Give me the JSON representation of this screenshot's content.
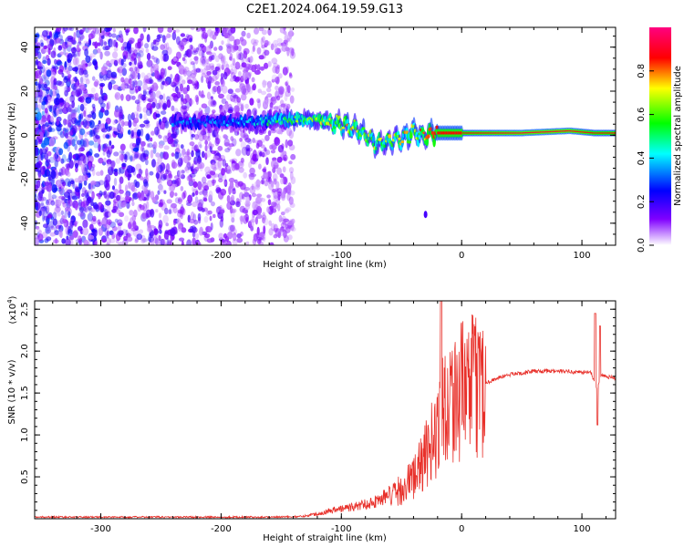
{
  "title": "C2E1.2024.064.19.59.G13",
  "chart_data": [
    {
      "type": "heatmap",
      "xlabel": "Height of straight line (km)",
      "ylabel": "Frequency (Hz)",
      "xlim": [
        -355,
        128
      ],
      "ylim": [
        -50,
        49
      ],
      "xticks": [
        -300,
        -200,
        -100,
        0,
        100
      ],
      "yticks": [
        -40,
        -20,
        0,
        20,
        40
      ],
      "colorbar": {
        "label": "Normalized spectral amplitude",
        "range": [
          0,
          1
        ],
        "ticks": [
          "0.0",
          "0.2",
          "0.4",
          "0.6",
          "0.8"
        ],
        "colormap": [
          "#ffffff",
          "#8000ff",
          "#0000ff",
          "#00ffff",
          "#00ff00",
          "#ffff00",
          "#ff0000",
          "#ff0080"
        ],
        "placement": "right"
      },
      "ridge": {
        "description_points_x": [
          -225,
          -180,
          -140,
          -120,
          -100,
          -85,
          -70,
          -55,
          -40,
          -30,
          -20,
          0,
          50,
          90,
          110,
          128
        ],
        "frequency_y": [
          6,
          6,
          7,
          7,
          5,
          2,
          -4,
          -2,
          1,
          0,
          1,
          1,
          1,
          2,
          1,
          1
        ],
        "peak_amplitude": [
          0.35,
          0.4,
          0.6,
          0.7,
          0.75,
          0.7,
          0.7,
          0.7,
          0.8,
          0.8,
          0.85,
          0.85,
          0.9,
          0.9,
          0.85,
          0.85
        ]
      }
    },
    {
      "type": "line",
      "xlabel": "Height of straight line (km)",
      "ylabel": "SNR (10 * v/v)",
      "y_multiplier": "(x10",
      "y_exponent": "4",
      "xlim": [
        -355,
        128
      ],
      "ylim": [
        0,
        2.6
      ],
      "xticks": [
        -300,
        -200,
        -100,
        0,
        100
      ],
      "yticks": [
        "0.5",
        "1.0",
        "1.5",
        "2.0",
        "2.5"
      ],
      "grid": false,
      "color": "#e8302a",
      "series": [
        {
          "x": [
            -355,
            -300,
            -250,
            -200,
            -150,
            -130,
            -120,
            -110,
            -100,
            -90,
            -80,
            -70,
            -60,
            -50,
            -40,
            -35,
            -30,
            -25,
            -20,
            -17,
            -15,
            -10,
            0,
            10,
            20,
            30,
            40,
            60,
            80,
            100,
            108,
            112,
            114,
            116,
            120,
            128
          ],
          "y": [
            0.02,
            0.02,
            0.02,
            0.02,
            0.02,
            0.03,
            0.05,
            0.08,
            0.1,
            0.12,
            0.15,
            0.18,
            0.25,
            0.35,
            0.5,
            0.6,
            0.75,
            0.9,
            1.1,
            1.25,
            1.35,
            1.45,
            1.52,
            1.58,
            1.62,
            1.68,
            1.72,
            1.76,
            1.76,
            1.75,
            1.74,
            1.55,
            1.6,
            1.72,
            1.7,
            1.68
          ]
        }
      ]
    }
  ]
}
